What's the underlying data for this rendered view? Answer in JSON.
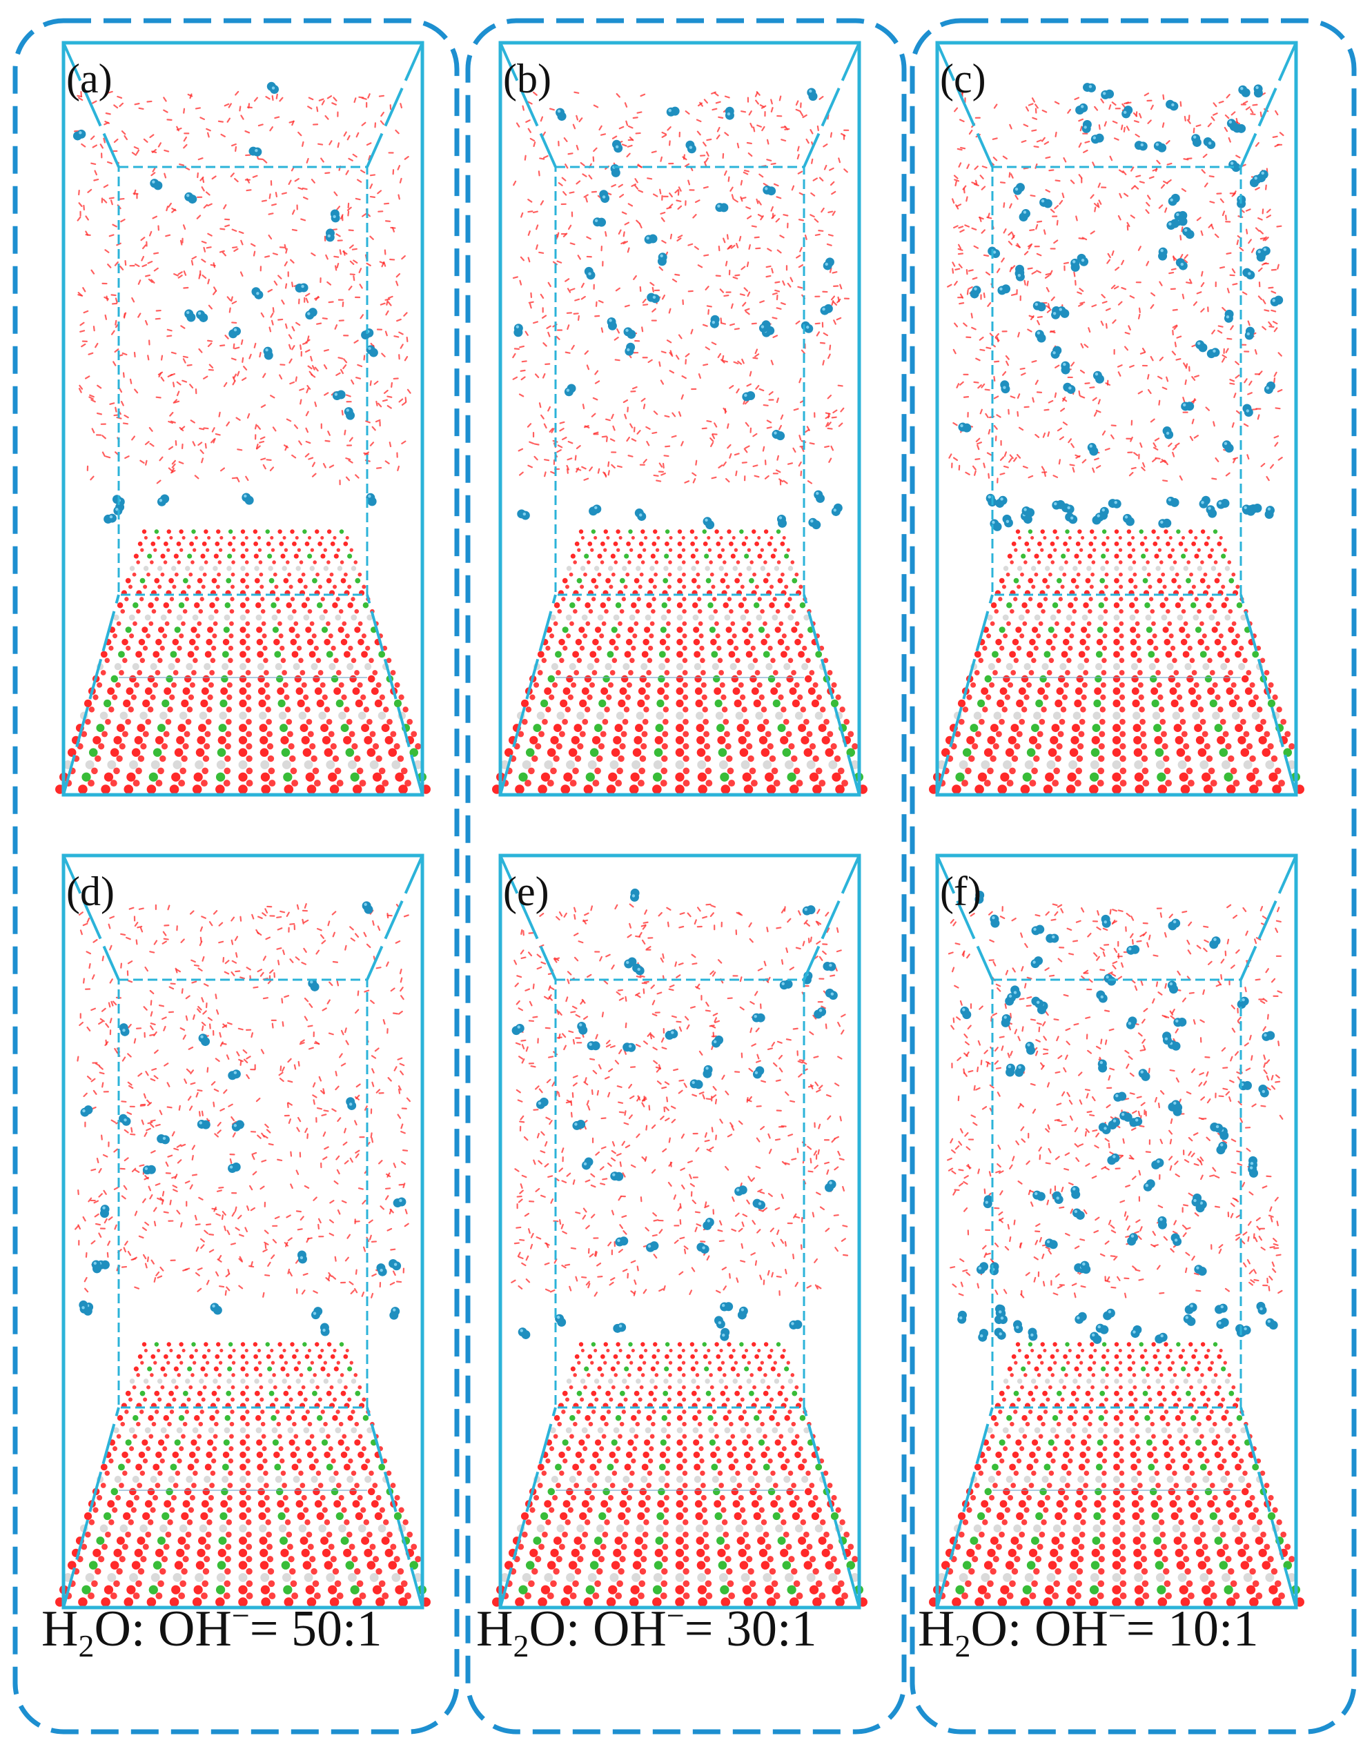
{
  "figure": {
    "columns": [
      {
        "ratio_label": {
          "prefix": "H",
          "sub": "2",
          "mid": "O: OH",
          "sup": "−",
          "suffix": "= 50:1"
        }
      },
      {
        "ratio_label": {
          "prefix": "H",
          "sub": "2",
          "mid": "O: OH",
          "sup": "−",
          "suffix": "= 30:1"
        }
      },
      {
        "ratio_label": {
          "prefix": "H",
          "sub": "2",
          "mid": "O: OH",
          "sup": "−",
          "suffix": "= 10:1"
        }
      }
    ],
    "panels": [
      {
        "label": "(a)",
        "ion_count": 18,
        "interface_ions": 6
      },
      {
        "label": "(b)",
        "ion_count": 28,
        "interface_ions": 8
      },
      {
        "label": "(c)",
        "ion_count": 60,
        "interface_ions": 22
      },
      {
        "label": "(d)",
        "ion_count": 20,
        "interface_ions": 6
      },
      {
        "label": "(e)",
        "ion_count": 30,
        "interface_ions": 8
      },
      {
        "label": "(f)",
        "ion_count": 62,
        "interface_ions": 22
      }
    ],
    "colors": {
      "frame": "#2bb3d9",
      "group_border": "#1d8fd0",
      "water": "#ff2a2a",
      "hydroxide": "#1f8fbf",
      "substrate_oxygen": "#ff1e1e",
      "substrate_metal": "#2db82d",
      "substrate_hydrogen": "#d8d8d8"
    },
    "icons": {
      "water": "red-dot-cloud",
      "hydroxide": "blue-dimer",
      "substrate": "perspective-atom-rows"
    }
  }
}
